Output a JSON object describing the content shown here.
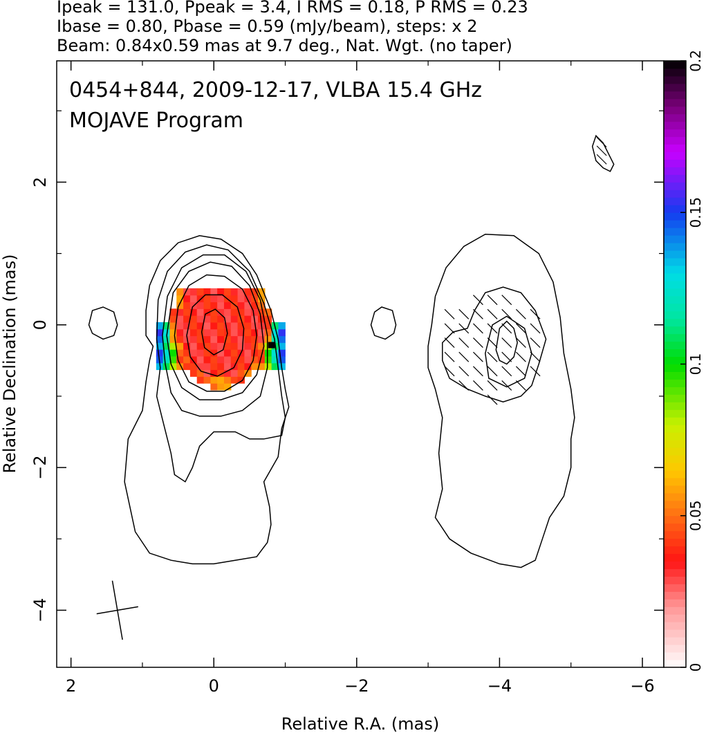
{
  "header": {
    "line1": "Ipeak = 131.0, Ppeak = 3.4, I RMS = 0.18, P RMS = 0.23",
    "line2": "Ibase = 0.80, Pbase = 0.59 (mJy/beam), steps: x 2",
    "line3": "Beam: 0.84x0.59 mas at 9.7 deg., Nat. Wgt. (no taper)"
  },
  "plot": {
    "title_line1": "0454+844, 2009-12-17, VLBA 15.4 GHz",
    "title_line2": "MOJAVE Program"
  },
  "chart_data": {
    "type": "heatmap",
    "subtype": "VLBI total-intensity contour map with fractional polarization color overlay",
    "xlabel": "Relative R.A. (mas)",
    "ylabel": "Relative Declination (mas)",
    "xlim": [
      2.2,
      -6.3
    ],
    "ylim": [
      -4.8,
      3.7
    ],
    "x_ticks": [
      2,
      0,
      -2,
      -4,
      -6
    ],
    "x_tick_labels": [
      "2",
      "0",
      "−2",
      "−4",
      "−6"
    ],
    "y_ticks": [
      -4,
      -2,
      0,
      2
    ],
    "y_tick_labels": [
      "−4",
      "−2",
      "0",
      "2"
    ],
    "colorbar": {
      "range": [
        0,
        0.2
      ],
      "ticks": [
        0,
        0.05,
        0.1,
        0.15,
        0.2
      ],
      "tick_labels": [
        "0",
        "0.05",
        "0.1",
        "0.15",
        "0.2"
      ]
    },
    "peak_intensity_mJy_per_beam": 131.0,
    "peak_polarized_mJy_per_beam": 3.4,
    "i_rms": 0.18,
    "p_rms": 0.23,
    "i_base_mJy_per_beam": 0.8,
    "p_base_mJy_per_beam": 0.59,
    "contour_step_factor": 2,
    "beam": {
      "major_mas": 0.84,
      "minor_mas": 0.59,
      "pa_deg": 9.7,
      "center": [
        1.35,
        -4.0
      ]
    },
    "core": {
      "ra": 0.0,
      "dec": 0.0
    },
    "left_source_contours": [
      {
        "level": 1,
        "points": [
          [
            0.95,
            -0.15
          ],
          [
            0.85,
            -0.3
          ],
          [
            0.9,
            -0.5
          ],
          [
            0.95,
            -0.8
          ],
          [
            1.0,
            -1.2
          ],
          [
            1.2,
            -1.6
          ],
          [
            1.25,
            -2.2
          ],
          [
            1.1,
            -2.9
          ],
          [
            0.9,
            -3.2
          ],
          [
            0.6,
            -3.3
          ],
          [
            0.3,
            -3.35
          ],
          [
            0,
            -3.35
          ],
          [
            -0.3,
            -3.3
          ],
          [
            -0.6,
            -3.25
          ],
          [
            -0.75,
            -3.05
          ],
          [
            -0.8,
            -2.8
          ],
          [
            -0.78,
            -2.55
          ],
          [
            -0.7,
            -2.2
          ],
          [
            -0.9,
            -1.85
          ],
          [
            -0.95,
            -1.45
          ],
          [
            -1.05,
            -1.15
          ],
          [
            -1.0,
            -0.9
          ],
          [
            -0.95,
            -0.6
          ],
          [
            -0.9,
            -0.2
          ],
          [
            -0.8,
            0.2
          ],
          [
            -0.6,
            0.7
          ],
          [
            -0.4,
            1.0
          ],
          [
            -0.1,
            1.2
          ],
          [
            0.2,
            1.25
          ],
          [
            0.5,
            1.15
          ],
          [
            0.75,
            0.9
          ],
          [
            0.9,
            0.55
          ],
          [
            0.95,
            0.2
          ],
          [
            0.95,
            -0.15
          ]
        ]
      },
      {
        "level": 2,
        "points": [
          [
            0.8,
            -0.2
          ],
          [
            0.75,
            -0.6
          ],
          [
            0.8,
            -1.0
          ],
          [
            0.7,
            -1.4
          ],
          [
            0.6,
            -1.8
          ],
          [
            0.55,
            -2.1
          ],
          [
            0.4,
            -2.2
          ],
          [
            0.3,
            -2.0
          ],
          [
            0.2,
            -1.7
          ],
          [
            0.0,
            -1.5
          ],
          [
            -0.3,
            -1.5
          ],
          [
            -0.5,
            -1.6
          ],
          [
            -0.7,
            -1.6
          ],
          [
            -0.95,
            -1.55
          ],
          [
            -1.0,
            -1.3
          ],
          [
            -0.95,
            -1.0
          ],
          [
            -0.9,
            -0.6
          ],
          [
            -0.85,
            -0.2
          ],
          [
            -0.7,
            0.3
          ],
          [
            -0.5,
            0.75
          ],
          [
            -0.2,
            1.05
          ],
          [
            0.1,
            1.12
          ],
          [
            0.4,
            1.02
          ],
          [
            0.65,
            0.75
          ],
          [
            0.78,
            0.35
          ],
          [
            0.8,
            -0.2
          ]
        ]
      },
      {
        "level": 4,
        "points": [
          [
            0.72,
            -0.15
          ],
          [
            0.68,
            -0.55
          ],
          [
            0.6,
            -0.95
          ],
          [
            0.45,
            -1.2
          ],
          [
            0.2,
            -1.28
          ],
          [
            -0.1,
            -1.28
          ],
          [
            -0.4,
            -1.2
          ],
          [
            -0.65,
            -1.0
          ],
          [
            -0.75,
            -0.6
          ],
          [
            -0.75,
            -0.15
          ],
          [
            -0.65,
            0.35
          ],
          [
            -0.45,
            0.75
          ],
          [
            -0.15,
            0.98
          ],
          [
            0.15,
            0.98
          ],
          [
            0.45,
            0.8
          ],
          [
            0.65,
            0.4
          ],
          [
            0.72,
            -0.15
          ]
        ]
      },
      {
        "level": 8,
        "points": [
          [
            0.66,
            -0.15
          ],
          [
            0.6,
            -0.55
          ],
          [
            0.45,
            -0.88
          ],
          [
            0.2,
            -1.05
          ],
          [
            -0.1,
            -1.05
          ],
          [
            -0.4,
            -0.95
          ],
          [
            -0.6,
            -0.7
          ],
          [
            -0.7,
            -0.3
          ],
          [
            -0.65,
            0.15
          ],
          [
            -0.5,
            0.55
          ],
          [
            -0.25,
            0.82
          ],
          [
            0.05,
            0.88
          ],
          [
            0.35,
            0.75
          ],
          [
            0.57,
            0.45
          ],
          [
            0.66,
            -0.15
          ]
        ]
      },
      {
        "level": 16,
        "points": [
          [
            0.55,
            -0.15
          ],
          [
            0.5,
            -0.5
          ],
          [
            0.35,
            -0.8
          ],
          [
            0.1,
            -0.93
          ],
          [
            -0.15,
            -0.93
          ],
          [
            -0.4,
            -0.78
          ],
          [
            -0.55,
            -0.5
          ],
          [
            -0.6,
            -0.15
          ],
          [
            -0.55,
            0.2
          ],
          [
            -0.4,
            0.5
          ],
          [
            -0.15,
            0.68
          ],
          [
            0.1,
            0.7
          ],
          [
            0.35,
            0.55
          ],
          [
            0.5,
            0.25
          ],
          [
            0.55,
            -0.15
          ]
        ]
      },
      {
        "level": 32,
        "points": [
          [
            0.38,
            -0.15
          ],
          [
            0.33,
            -0.45
          ],
          [
            0.18,
            -0.65
          ],
          [
            -0.05,
            -0.72
          ],
          [
            -0.28,
            -0.6
          ],
          [
            -0.4,
            -0.35
          ],
          [
            -0.42,
            -0.05
          ],
          [
            -0.33,
            0.25
          ],
          [
            -0.12,
            0.42
          ],
          [
            0.12,
            0.42
          ],
          [
            0.3,
            0.25
          ],
          [
            0.38,
            -0.15
          ]
        ]
      },
      {
        "level": 64,
        "points": [
          [
            0.17,
            -0.1
          ],
          [
            0.13,
            -0.32
          ],
          [
            0.0,
            -0.42
          ],
          [
            -0.13,
            -0.35
          ],
          [
            -0.19,
            -0.12
          ],
          [
            -0.15,
            0.1
          ],
          [
            -0.02,
            0.22
          ],
          [
            0.12,
            0.15
          ],
          [
            0.17,
            -0.1
          ]
        ]
      },
      {
        "level": 1,
        "points": [
          [
            1.75,
            0.0
          ],
          [
            1.7,
            0.2
          ],
          [
            1.55,
            0.25
          ],
          [
            1.4,
            0.18
          ],
          [
            1.35,
            0.0
          ],
          [
            1.4,
            -0.15
          ],
          [
            1.55,
            -0.2
          ],
          [
            1.7,
            -0.12
          ],
          [
            1.75,
            0.0
          ]
        ]
      }
    ],
    "right_source_contours": [
      {
        "level": 1,
        "points": [
          [
            -3.0,
            -0.6
          ],
          [
            -3.1,
            -0.9
          ],
          [
            -3.2,
            -1.3
          ],
          [
            -3.15,
            -1.8
          ],
          [
            -3.2,
            -2.3
          ],
          [
            -3.1,
            -2.7
          ],
          [
            -3.3,
            -3.0
          ],
          [
            -3.6,
            -3.2
          ],
          [
            -4.0,
            -3.35
          ],
          [
            -4.3,
            -3.4
          ],
          [
            -4.5,
            -3.3
          ],
          [
            -4.6,
            -3.0
          ],
          [
            -4.7,
            -2.7
          ],
          [
            -4.9,
            -2.4
          ],
          [
            -5.0,
            -2.0
          ],
          [
            -5.0,
            -1.6
          ],
          [
            -5.05,
            -1.3
          ],
          [
            -5.0,
            -0.9
          ],
          [
            -4.9,
            -0.4
          ],
          [
            -4.85,
            0.1
          ],
          [
            -4.75,
            0.6
          ],
          [
            -4.55,
            1.0
          ],
          [
            -4.2,
            1.25
          ],
          [
            -3.8,
            1.27
          ],
          [
            -3.5,
            1.1
          ],
          [
            -3.25,
            0.8
          ],
          [
            -3.1,
            0.4
          ],
          [
            -3.05,
            0.0
          ],
          [
            -3.0,
            -0.3
          ],
          [
            -3.0,
            -0.6
          ]
        ]
      },
      {
        "level": 1,
        "points": [
          [
            -2.55,
            0.0
          ],
          [
            -2.5,
            0.2
          ],
          [
            -2.35,
            0.25
          ],
          [
            -2.25,
            0.18
          ],
          [
            -2.2,
            0.0
          ],
          [
            -2.25,
            -0.15
          ],
          [
            -2.4,
            -0.2
          ],
          [
            -2.52,
            -0.12
          ],
          [
            -2.55,
            0.0
          ]
        ]
      },
      {
        "level": "polarized",
        "points": [
          [
            -3.2,
            -0.5
          ],
          [
            -3.3,
            -0.75
          ],
          [
            -3.55,
            -0.9
          ],
          [
            -3.8,
            -1.0
          ],
          [
            -4.05,
            -1.08
          ],
          [
            -4.3,
            -1.0
          ],
          [
            -4.45,
            -0.85
          ],
          [
            -4.55,
            -0.55
          ],
          [
            -4.65,
            -0.2
          ],
          [
            -4.5,
            0.2
          ],
          [
            -4.3,
            0.45
          ],
          [
            -4.05,
            0.53
          ],
          [
            -3.8,
            0.45
          ],
          [
            -3.65,
            0.2
          ],
          [
            -3.55,
            -0.05
          ],
          [
            -3.35,
            -0.1
          ],
          [
            -3.2,
            -0.25
          ],
          [
            -3.2,
            -0.5
          ]
        ]
      },
      {
        "level": "polarized",
        "points": [
          [
            -3.8,
            -0.4
          ],
          [
            -3.85,
            -0.75
          ],
          [
            -4.1,
            -0.87
          ],
          [
            -4.35,
            -0.75
          ],
          [
            -4.45,
            -0.4
          ],
          [
            -4.35,
            -0.05
          ],
          [
            -4.1,
            0.12
          ],
          [
            -3.9,
            0.0
          ],
          [
            -3.8,
            -0.4
          ]
        ]
      },
      {
        "level": "polarized",
        "points": [
          [
            -3.95,
            -0.35
          ],
          [
            -4.0,
            -0.5
          ],
          [
            -4.1,
            -0.55
          ],
          [
            -4.2,
            -0.45
          ],
          [
            -4.25,
            -0.25
          ],
          [
            -4.2,
            -0.05
          ],
          [
            -4.1,
            0.05
          ],
          [
            -4.0,
            -0.05
          ],
          [
            -3.95,
            -0.35
          ]
        ]
      },
      {
        "level": "polarized",
        "points": [
          [
            -5.3,
            2.5
          ],
          [
            -5.35,
            2.65
          ],
          [
            -5.45,
            2.55
          ],
          [
            -5.55,
            2.35
          ],
          [
            -5.6,
            2.25
          ],
          [
            -5.55,
            2.15
          ],
          [
            -5.45,
            2.2
          ],
          [
            -5.35,
            2.3
          ],
          [
            -5.3,
            2.5
          ]
        ]
      }
    ]
  }
}
